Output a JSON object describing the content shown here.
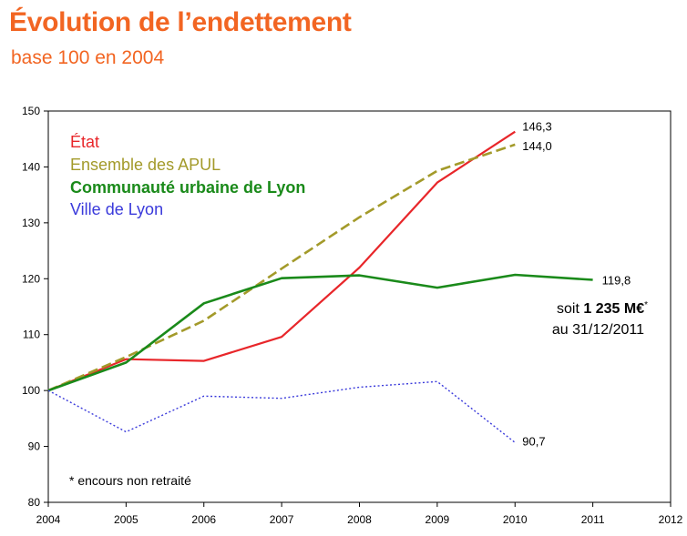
{
  "header": {
    "title": "Évolution de l’endettement",
    "subtitle": "base 100 en 2004"
  },
  "annotation": {
    "prefix": "soit ",
    "amount": "1 235 M€",
    "star": "*",
    "line2": "au 31/12/2011"
  },
  "footnote": "* encours non retraité",
  "chart_data": {
    "type": "line",
    "x_ticks": [
      "2004",
      "2005",
      "2006",
      "2007",
      "2008",
      "2009",
      "2010",
      "2011",
      "2012"
    ],
    "y_ticks": [
      "80",
      "90",
      "100",
      "110",
      "120",
      "130",
      "140",
      "150"
    ],
    "xlim": [
      2004,
      2012
    ],
    "ylim": [
      80,
      150
    ],
    "grid": false,
    "legend_placement": "top-left",
    "series": [
      {
        "name": "État",
        "color": "#e8262a",
        "style": "solid",
        "width": 2.2,
        "x": [
          2004,
          2005,
          2006,
          2007,
          2008,
          2009,
          2010
        ],
        "y": [
          100,
          105.6,
          105.3,
          109.6,
          122.0,
          137.2,
          146.3
        ],
        "end_label": "146,3"
      },
      {
        "name": "Ensemble des APUL",
        "color": "#a39a2a",
        "style": "dashed",
        "width": 2.6,
        "x": [
          2004,
          2005,
          2006,
          2007,
          2008,
          2009,
          2010
        ],
        "y": [
          100,
          106.0,
          112.5,
          121.8,
          131.0,
          139.3,
          144.0
        ],
        "end_label": "144,0"
      },
      {
        "name": "Communauté urbaine de Lyon",
        "color": "#1a8a1a",
        "style": "solid",
        "width": 2.6,
        "bold": true,
        "x": [
          2004,
          2005,
          2006,
          2007,
          2008,
          2009,
          2010,
          2011
        ],
        "y": [
          100,
          105.0,
          115.6,
          120.1,
          120.6,
          118.4,
          120.7,
          119.8
        ],
        "end_label": "119,8"
      },
      {
        "name": "Ville de Lyon",
        "color": "#3a3adb",
        "style": "dotted",
        "width": 1.4,
        "x": [
          2004,
          2005,
          2006,
          2007,
          2008,
          2009,
          2010
        ],
        "y": [
          100,
          92.6,
          99.0,
          98.6,
          100.6,
          101.6,
          90.7
        ],
        "end_label": "90,7"
      }
    ]
  }
}
